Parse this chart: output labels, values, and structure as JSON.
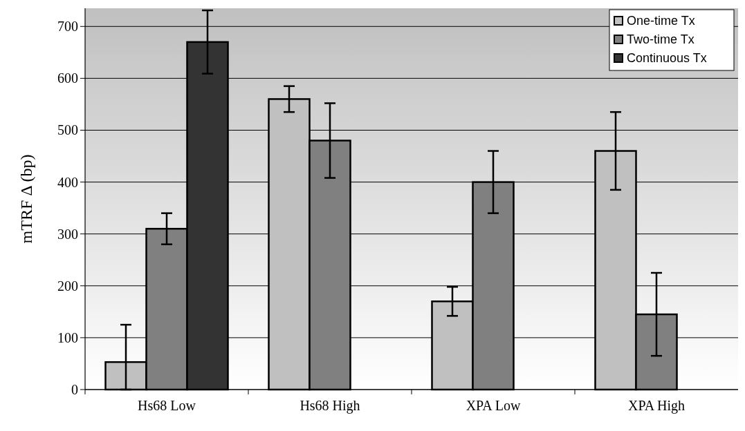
{
  "chart_data": {
    "type": "bar",
    "ylabel": "mTRF Δ (bp)",
    "categories": [
      "Hs68 Low",
      "Hs68 High",
      "XPA Low",
      "XPA High"
    ],
    "series": [
      {
        "name": "One-time Tx",
        "color": "#c0c0c0",
        "values": [
          53,
          560,
          170,
          460
        ],
        "errors": [
          [
            0,
            125
          ],
          25,
          28,
          75
        ]
      },
      {
        "name": "Two-time Tx",
        "color": "#808080",
        "values": [
          310,
          480,
          400,
          145
        ],
        "errors": [
          30,
          72,
          60,
          80
        ]
      },
      {
        "name": "Continuous Tx",
        "color": "#333333",
        "values": [
          670,
          null,
          null,
          null
        ],
        "errors": [
          61,
          null,
          null,
          null
        ]
      }
    ],
    "ylim": [
      0,
      735
    ],
    "yticks": [
      0,
      100,
      200,
      300,
      400,
      500,
      600,
      700
    ],
    "grid": "y",
    "legend": "top right"
  }
}
